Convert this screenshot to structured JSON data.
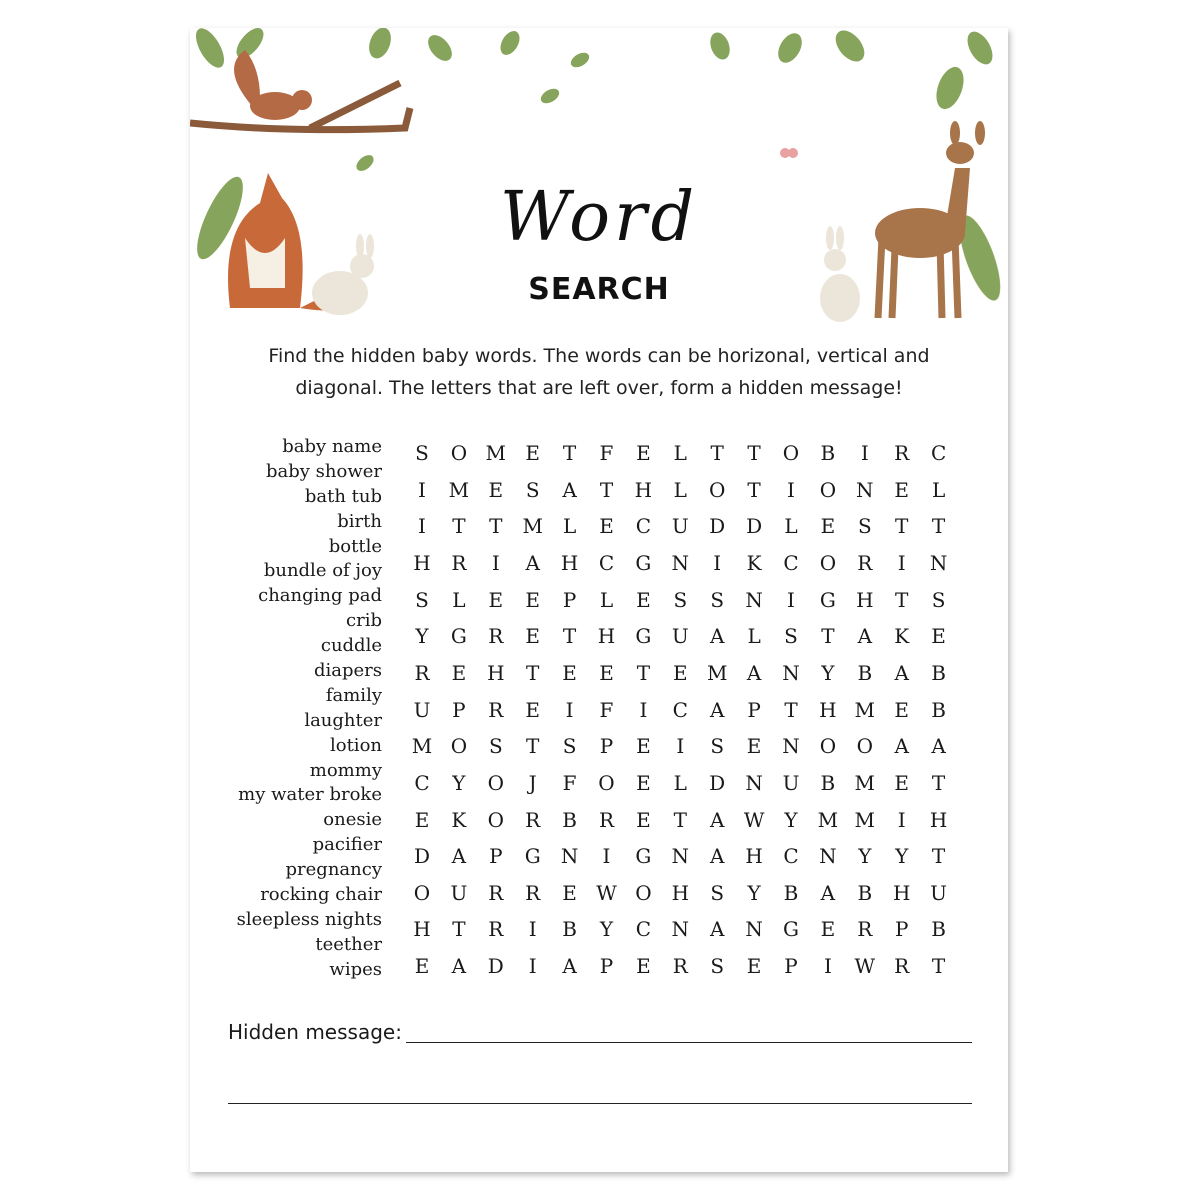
{
  "title": {
    "script": "Word",
    "main": "SEARCH"
  },
  "instructions": [
    "Find the hidden baby words. The words can be horizonal, vertical and",
    "diagonal. The letters that are left over, form a hidden message!"
  ],
  "word_list": [
    "baby name",
    "baby shower",
    "bath tub",
    "birth",
    "bottle",
    "bundle of joy",
    "changing pad",
    "crib",
    "cuddle",
    "diapers",
    "family",
    "laughter",
    "lotion",
    "mommy",
    "my water broke",
    "onesie",
    "pacifier",
    "pregnancy",
    "rocking chair",
    "sleepless nights",
    "teether",
    "wipes"
  ],
  "grid": [
    "SOMETFELTTOBIRC",
    "IMESATHLOTIONEL",
    "ITTMLECUDDLESTT",
    "HRIAHCGNIKCORIN",
    "SLEEPLESSNIGHTS",
    "YGRETHGUALSTAKE",
    "REHTEETEMANYBAB",
    "UPREIFICAPTHMEB",
    "MOSTSPEISENOOAA",
    "CYOJFOELDNUBMET",
    "EKORBRETAWYMMIH",
    "DAPGNIGNAHCNYYT",
    "OURREWOHSYBABHU",
    "HTRIBYCNANGERPB",
    "EADIAPERSEPIWRT"
  ],
  "hidden_message_label": "Hidden message:",
  "illustration_icons": [
    "squirrel-icon",
    "fox-icon",
    "rabbit-icon",
    "deer-icon",
    "leaf-icon",
    "butterfly-icon"
  ],
  "colors": {
    "leaf": "#7a9a4a",
    "fox": "#c8693a",
    "deer": "#a8744a"
  }
}
